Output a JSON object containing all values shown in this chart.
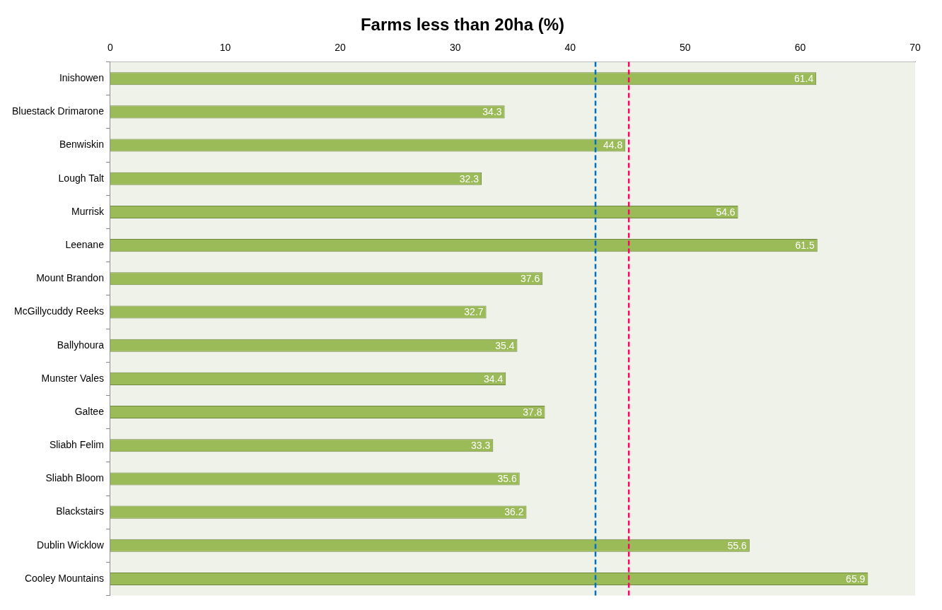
{
  "chart_data": {
    "type": "bar",
    "orientation": "horizontal",
    "title": "Farms less than 20ha (%)",
    "categories": [
      "Inishowen",
      "Bluestack Drimarone",
      "Benwiskin",
      "Lough Talt",
      "Murrisk",
      "Leenane",
      "Mount Brandon",
      "McGillycuddy Reeks",
      "Ballyhoura",
      "Munster Vales",
      "Galtee",
      "Sliabh Felim",
      "Sliabh Bloom",
      "Blackstairs",
      "Dublin Wicklow",
      "Cooley Mountains"
    ],
    "values": [
      61.4,
      34.3,
      44.8,
      32.3,
      54.6,
      61.5,
      37.6,
      32.7,
      35.4,
      34.4,
      37.8,
      33.3,
      35.6,
      36.2,
      55.6,
      65.9
    ],
    "color": "#9bbb59",
    "data_labels": true,
    "xlim": [
      0,
      70
    ],
    "xticks": [
      0,
      10,
      20,
      30,
      40,
      50,
      60,
      70
    ],
    "grid": false,
    "legend": false,
    "ref_lines": [
      {
        "axis": "x",
        "value": 42.2,
        "color": "#0070c0",
        "line_style": "dashed"
      },
      {
        "axis": "x",
        "value": 45.1,
        "color": "#ff0066",
        "line_style": "dashed"
      }
    ]
  }
}
